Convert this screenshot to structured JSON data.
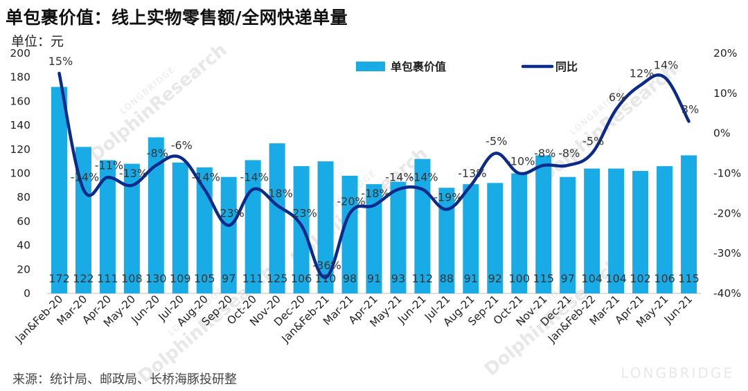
{
  "header": {
    "title": "单包裹价值：线上实物零售额/全网快递单量",
    "unit": "单位：元"
  },
  "footer": {
    "source": "来源：统计局、邮政局、长桥海豚投研整"
  },
  "watermark": {
    "brand": "LONGBRIDGE",
    "text": "DolphinResearch"
  },
  "colors": {
    "bar": "#19abe6",
    "line": "#0a2a8c"
  },
  "chart_data": {
    "type": "bar",
    "categories": [
      "Jan&Feb-20",
      "Mar-20",
      "Apr-20",
      "May-20",
      "Jun-20",
      "Jul-20",
      "Aug-20",
      "Sep-20",
      "Oct-20",
      "Nov-20",
      "Dec-20",
      "Jan&Feb-21",
      "Mar-21",
      "Apr-21",
      "May-21",
      "Jun-21",
      "Jul-21",
      "Aug-21",
      "Sep-21",
      "Oct-21",
      "Nov-21",
      "Dec-21",
      "Jan&Feb-22",
      "Mar-21",
      "Apr-21",
      "May-21",
      "Jun-21"
    ],
    "series": [
      {
        "name": "单包裹价值",
        "type": "bar",
        "axis": "left",
        "values": [
          172,
          122,
          111,
          108,
          130,
          109,
          105,
          97,
          111,
          125,
          106,
          110,
          98,
          91,
          93,
          112,
          88,
          91,
          92,
          100,
          115,
          97,
          104,
          104,
          102,
          106,
          115
        ]
      },
      {
        "name": "同比",
        "type": "line",
        "axis": "right",
        "values": [
          15,
          -14,
          -11,
          -13,
          -8,
          -6,
          -14,
          -23,
          -14,
          -18,
          -23,
          -36,
          -20,
          -18,
          -14,
          -14,
          -19,
          -13,
          -5,
          -10,
          -8,
          -8,
          -5,
          6,
          12,
          14,
          3
        ],
        "labels": [
          "15%",
          "-14%",
          "-11%",
          "-13%",
          "-8%",
          "-6%",
          "-14%",
          "-23%",
          "-14%",
          "-18%",
          "-23%",
          "-36%",
          "-20%",
          "-18%",
          "-14%",
          "-14%",
          "-19%",
          "-13%",
          "-5%",
          "-10%",
          "-8%",
          "-8%",
          "-5%",
          "6%",
          "12%",
          "14%",
          "3%"
        ]
      }
    ],
    "ylim_left": [
      0,
      200
    ],
    "yticks_left": [
      0,
      20,
      40,
      60,
      80,
      100,
      120,
      140,
      160,
      180,
      200
    ],
    "ylim_right": [
      -40,
      20
    ],
    "yticks_right": [
      "-40%",
      "-30%",
      "-20%",
      "-10%",
      "0%",
      "10%",
      "20%"
    ],
    "yticks_right_values": [
      -40,
      -30,
      -20,
      -10,
      0,
      10,
      20
    ],
    "grid": false,
    "legend": "top-right"
  }
}
